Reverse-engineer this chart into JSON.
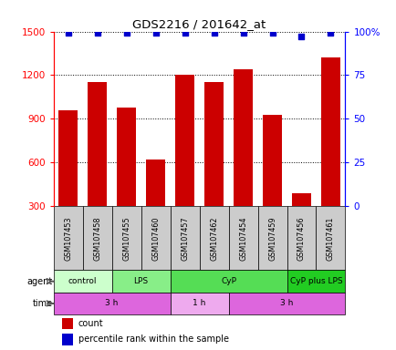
{
  "title": "GDS2216 / 201642_at",
  "samples": [
    "GSM107453",
    "GSM107458",
    "GSM107455",
    "GSM107460",
    "GSM107457",
    "GSM107462",
    "GSM107454",
    "GSM107459",
    "GSM107456",
    "GSM107461"
  ],
  "counts": [
    960,
    1150,
    980,
    620,
    1200,
    1150,
    1240,
    930,
    390,
    1320
  ],
  "percentile_ranks": [
    99,
    99,
    99,
    99,
    99,
    99,
    99,
    99,
    97,
    99
  ],
  "ylim_left": [
    300,
    1500
  ],
  "ylim_right": [
    0,
    100
  ],
  "yticks_left": [
    300,
    600,
    900,
    1200,
    1500
  ],
  "yticks_right": [
    0,
    25,
    50,
    75,
    100
  ],
  "bar_color": "#cc0000",
  "dot_color": "#0000cc",
  "agent_groups": [
    {
      "label": "control",
      "start": 0,
      "end": 2,
      "color": "#ccffcc"
    },
    {
      "label": "LPS",
      "start": 2,
      "end": 4,
      "color": "#88ee88"
    },
    {
      "label": "CyP",
      "start": 4,
      "end": 8,
      "color": "#55dd55"
    },
    {
      "label": "CyP plus LPS",
      "start": 8,
      "end": 10,
      "color": "#22cc22"
    }
  ],
  "time_groups": [
    {
      "label": "3 h",
      "start": 0,
      "end": 4,
      "color": "#dd66dd"
    },
    {
      "label": "1 h",
      "start": 4,
      "end": 6,
      "color": "#eeaaee"
    },
    {
      "label": "3 h",
      "start": 6,
      "end": 10,
      "color": "#dd66dd"
    }
  ],
  "sample_box_color": "#cccccc",
  "legend_items": [
    {
      "color": "#cc0000",
      "label": "count"
    },
    {
      "color": "#0000cc",
      "label": "percentile rank within the sample"
    }
  ]
}
